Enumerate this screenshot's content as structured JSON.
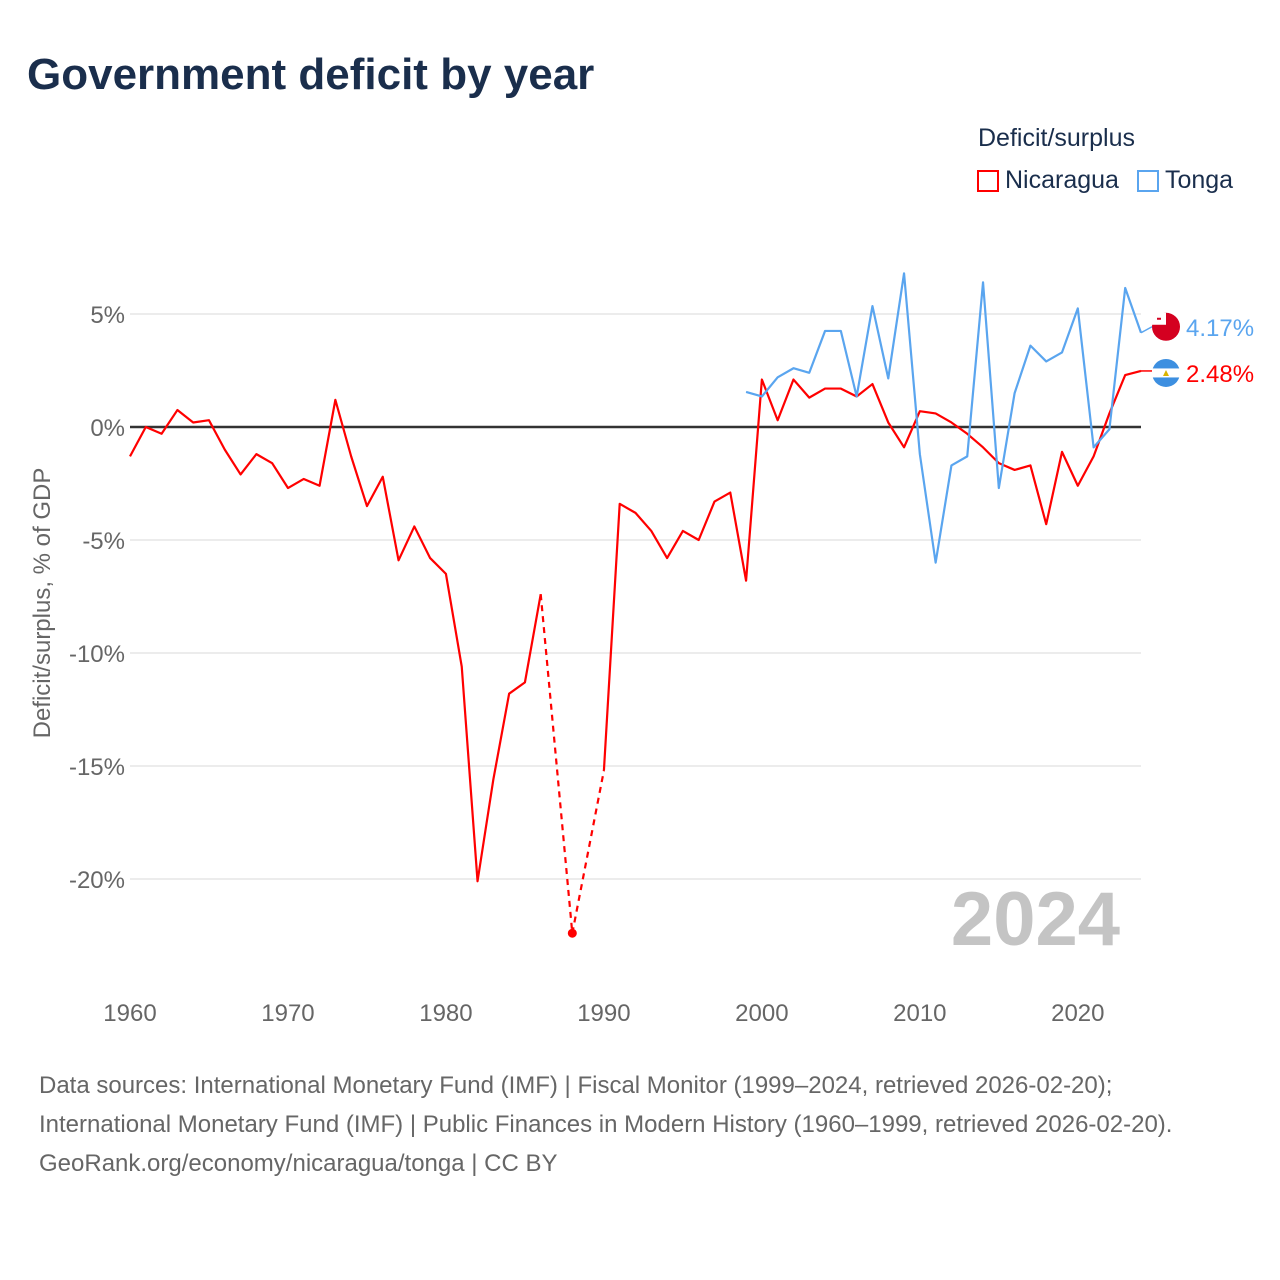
{
  "title": "Government deficit by year",
  "legend": {
    "title": "Deficit/surplus",
    "items": [
      {
        "name": "Nicaragua",
        "color": "#ff0000"
      },
      {
        "name": "Tonga",
        "color": "#5aa5ef"
      }
    ]
  },
  "footer": {
    "sources": "Data sources: International Monetary Fund (IMF) | Fiscal Monitor (1999–2024, retrieved 2026-02-20); International Monetary Fund (IMF) | Public Finances in Modern History (1960–1999, retrieved 2026-02-20).",
    "credit": "GeoRank.org/economy/nicaragua/tonga | CC BY"
  },
  "chart_data": {
    "type": "line",
    "title": "Government deficit by year",
    "xlabel": "",
    "ylabel": "Deficit/surplus, % of GDP",
    "xlim": [
      1960,
      2024
    ],
    "ylim": [
      -24,
      7
    ],
    "x_ticks": [
      1960,
      1970,
      1980,
      1990,
      2000,
      2010,
      2020
    ],
    "x_tick_labels": [
      "1960",
      "1970",
      "1980",
      "1990",
      "2000",
      "2010",
      "2020"
    ],
    "y_ticks": [
      5,
      0,
      -5,
      -10,
      -15,
      -20
    ],
    "y_tick_labels": [
      "5%",
      "0%",
      "-5%",
      "-10%",
      "-15%",
      "-20%"
    ],
    "grid": true,
    "legend_position": "top-right",
    "year_label": "2024",
    "series": [
      {
        "name": "Nicaragua",
        "color": "#ff0000",
        "end_label": "2.48%",
        "x": [
          1960,
          1961,
          1962,
          1963,
          1964,
          1965,
          1966,
          1967,
          1968,
          1969,
          1970,
          1971,
          1972,
          1973,
          1974,
          1975,
          1976,
          1977,
          1978,
          1979,
          1980,
          1981,
          1982,
          1983,
          1984,
          1985,
          1986,
          1988,
          1990,
          1991,
          1992,
          1993,
          1994,
          1995,
          1996,
          1997,
          1998,
          1999,
          2000,
          2001,
          2002,
          2003,
          2004,
          2005,
          2006,
          2007,
          2008,
          2009,
          2010,
          2011,
          2012,
          2013,
          2014,
          2015,
          2016,
          2017,
          2018,
          2019,
          2020,
          2021,
          2022,
          2023,
          2024
        ],
        "values": [
          -1.3,
          0.0,
          -0.3,
          0.75,
          0.2,
          0.3,
          -1.0,
          -2.1,
          -1.2,
          -1.6,
          -2.7,
          -2.3,
          -2.6,
          1.2,
          -1.3,
          -3.5,
          -2.2,
          -5.9,
          -4.4,
          -5.8,
          -6.5,
          -10.6,
          -20.1,
          -15.6,
          -11.8,
          -11.3,
          -7.4,
          -22.4,
          -15.2,
          -3.4,
          -3.8,
          -4.6,
          -5.8,
          -4.6,
          -5.0,
          -3.3,
          -2.9,
          -6.8,
          2.1,
          0.3,
          2.1,
          1.3,
          1.7,
          1.7,
          1.35,
          1.9,
          0.2,
          -0.9,
          0.7,
          0.6,
          0.2,
          -0.3,
          -0.9,
          -1.6,
          -1.9,
          -1.7,
          -4.3,
          -1.1,
          -2.6,
          -1.3,
          0.6,
          2.3,
          2.48
        ]
      },
      {
        "name": "Tonga",
        "color": "#5aa5ef",
        "end_label": "4.17%",
        "x": [
          1999,
          2000,
          2001,
          2002,
          2003,
          2004,
          2005,
          2006,
          2007,
          2008,
          2009,
          2010,
          2011,
          2012,
          2013,
          2014,
          2015,
          2016,
          2017,
          2018,
          2019,
          2020,
          2021,
          2022,
          2023,
          2024
        ],
        "values": [
          1.55,
          1.35,
          2.2,
          2.6,
          2.4,
          4.25,
          4.25,
          1.35,
          5.35,
          2.15,
          6.8,
          -1.2,
          -6.0,
          -1.7,
          -1.3,
          6.4,
          -2.7,
          1.5,
          3.6,
          2.9,
          3.3,
          5.25,
          -0.9,
          -0.1,
          6.15,
          4.17
        ]
      }
    ]
  }
}
